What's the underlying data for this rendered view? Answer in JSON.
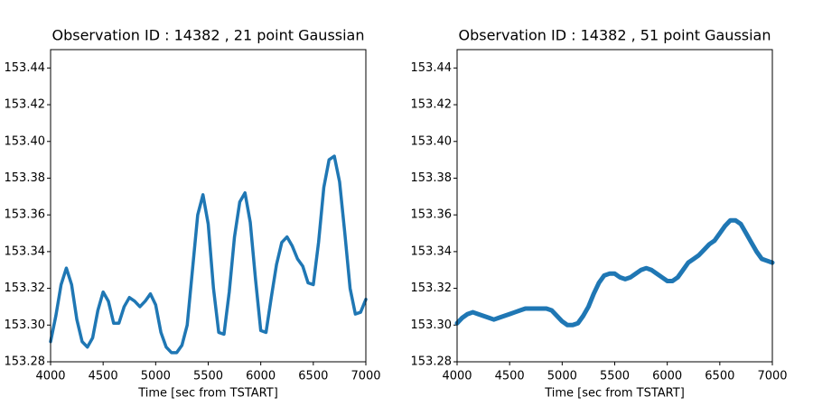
{
  "chart_data": [
    {
      "type": "line",
      "title": "Observation ID : 14382 , 21 point Gaussian",
      "xlabel": "Time [sec from TSTART]",
      "color": "#1f77b4",
      "x": [
        4000,
        4050,
        4100,
        4150,
        4200,
        4250,
        4300,
        4350,
        4400,
        4450,
        4500,
        4550,
        4600,
        4650,
        4700,
        4750,
        4800,
        4850,
        4900,
        4950,
        5000,
        5050,
        5100,
        5150,
        5200,
        5250,
        5300,
        5350,
        5400,
        5450,
        5500,
        5550,
        5600,
        5650,
        5700,
        5750,
        5800,
        5850,
        5900,
        5950,
        6000,
        6050,
        6100,
        6150,
        6200,
        6250,
        6300,
        6350,
        6400,
        6450,
        6500,
        6550,
        6600,
        6650,
        6700,
        6750,
        6800,
        6850,
        6900,
        6950,
        7000
      ],
      "values": [
        153.291,
        153.305,
        153.322,
        153.331,
        153.322,
        153.303,
        153.291,
        153.288,
        153.293,
        153.308,
        153.318,
        153.313,
        153.301,
        153.301,
        153.31,
        153.315,
        153.313,
        153.31,
        153.313,
        153.317,
        153.311,
        153.296,
        153.288,
        153.285,
        153.285,
        153.289,
        153.3,
        153.33,
        153.36,
        153.371,
        153.355,
        153.32,
        153.296,
        153.295,
        153.318,
        153.348,
        153.367,
        153.372,
        153.356,
        153.325,
        153.297,
        153.296,
        153.315,
        153.333,
        153.345,
        153.348,
        153.343,
        153.336,
        153.332,
        153.323,
        153.322,
        153.345,
        153.375,
        153.39,
        153.392,
        153.378,
        153.35,
        153.32,
        153.306,
        153.307,
        153.314
      ],
      "xlim": [
        4000,
        7000
      ],
      "xticks": [
        4000,
        4500,
        5000,
        5500,
        6000,
        6500,
        7000
      ],
      "ylim": [
        153.28,
        153.45
      ],
      "yticks": [
        153.28,
        {
          "value": 153.3,
          "label": "153.30"
        },
        153.32,
        153.34,
        153.36,
        153.38,
        {
          "value": 153.4,
          "label": "153.40"
        },
        153.42,
        153.44
      ]
    },
    {
      "type": "line",
      "title": "Observation ID : 14382 , 51 point Gaussian",
      "xlabel": "Time [sec from TSTART]",
      "color": "#1f77b4",
      "x": [
        4000,
        4050,
        4100,
        4150,
        4200,
        4250,
        4300,
        4350,
        4400,
        4450,
        4500,
        4550,
        4600,
        4650,
        4700,
        4750,
        4800,
        4850,
        4900,
        4950,
        5000,
        5050,
        5100,
        5150,
        5200,
        5250,
        5300,
        5350,
        5400,
        5450,
        5500,
        5550,
        5600,
        5650,
        5700,
        5750,
        5800,
        5850,
        5900,
        5950,
        6000,
        6050,
        6100,
        6150,
        6200,
        6250,
        6300,
        6350,
        6400,
        6450,
        6500,
        6550,
        6600,
        6650,
        6700,
        6750,
        6800,
        6850,
        6900,
        6950,
        7000
      ],
      "values": [
        153.301,
        153.304,
        153.306,
        153.307,
        153.306,
        153.305,
        153.304,
        153.303,
        153.304,
        153.305,
        153.306,
        153.307,
        153.308,
        153.309,
        153.309,
        153.309,
        153.309,
        153.309,
        153.308,
        153.305,
        153.302,
        153.3,
        153.3,
        153.301,
        153.305,
        153.31,
        153.317,
        153.323,
        153.327,
        153.328,
        153.328,
        153.326,
        153.325,
        153.326,
        153.328,
        153.33,
        153.331,
        153.33,
        153.328,
        153.326,
        153.324,
        153.324,
        153.326,
        153.33,
        153.334,
        153.336,
        153.338,
        153.341,
        153.344,
        153.346,
        153.35,
        153.354,
        153.357,
        153.357,
        153.355,
        153.35,
        153.345,
        153.34,
        153.336,
        153.335,
        153.334
      ],
      "xlim": [
        4000,
        7000
      ],
      "xticks": [
        4000,
        4500,
        5000,
        5500,
        6000,
        6500,
        7000
      ],
      "ylim": [
        153.28,
        153.45
      ],
      "yticks": [
        153.28,
        {
          "value": 153.3,
          "label": "153.30"
        },
        153.32,
        153.34,
        153.36,
        153.38,
        {
          "value": 153.4,
          "label": "153.40"
        },
        153.42,
        153.44
      ]
    }
  ]
}
